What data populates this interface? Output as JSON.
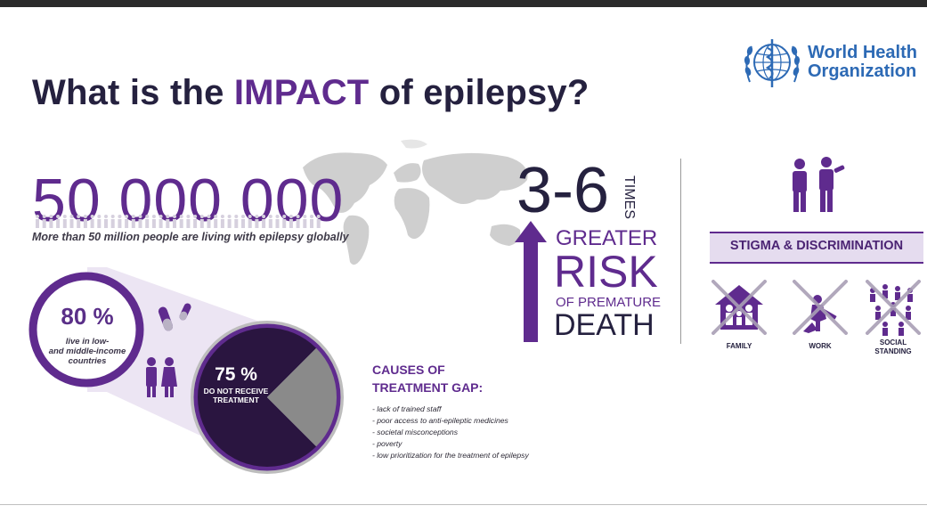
{
  "org": {
    "line1": "World Health",
    "line2": "Organization"
  },
  "title": {
    "part1": "What is the ",
    "accent": "IMPACT",
    "part2": " of epilepsy?"
  },
  "stat_global": {
    "value": "50 000 000",
    "caption": "More than 50 million people are living with epilepsy globally"
  },
  "stat_income": {
    "value": "80 %",
    "caption_line1": "live in low-",
    "caption_line2": "and middle-income",
    "caption_line3": "countries"
  },
  "stat_gap": {
    "value": "75 %",
    "caption_line1": "DO NOT RECEIVE",
    "caption_line2": "TREATMENT",
    "fraction": 0.75
  },
  "causes": {
    "heading_line1": "CAUSES OF",
    "heading_line2": "TREATMENT GAP:",
    "items": [
      "- lack of trained staff",
      "- poor access to anti-epileptic medicines",
      "- societal misconceptions",
      "- poverty",
      "- low prioritization for the treatment of epilepsy"
    ]
  },
  "risk": {
    "multiplier": "3-6",
    "times": "TIMES",
    "greater": "GREATER",
    "risk": "RISK",
    "of": "OF PREMATURE",
    "death": "DEATH"
  },
  "stigma": {
    "heading": "STIGMA & DISCRIMINATION",
    "family": "FAMILY",
    "work": "WORK",
    "social_line1": "SOCIAL",
    "social_line2": "STANDING"
  },
  "colors": {
    "purple": "#5f2b8e",
    "dark_purple": "#2a1540",
    "navy": "#25213f",
    "light_purple": "#e5dcef",
    "who_blue": "#2d6ab5",
    "gray": "#b3b3b3"
  }
}
